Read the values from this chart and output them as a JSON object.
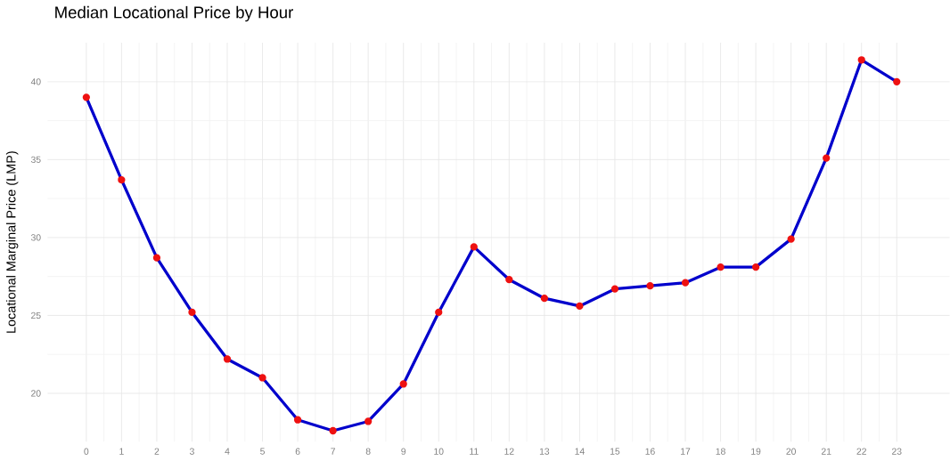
{
  "chart_data": {
    "type": "line",
    "title": "Median Locational Price by Hour",
    "ylabel": "Locational Marginal Price (LMP)",
    "x": [
      0,
      1,
      2,
      3,
      4,
      5,
      6,
      7,
      8,
      9,
      10,
      11,
      12,
      13,
      14,
      15,
      16,
      17,
      18,
      19,
      20,
      21,
      22,
      23
    ],
    "series": [
      {
        "color": "#0000cc",
        "values": [
          39.0,
          33.7,
          28.7,
          25.2,
          22.2,
          21.0,
          18.3,
          17.6,
          18.2,
          20.6,
          25.2,
          29.4,
          27.3,
          26.1,
          25.6,
          26.7,
          26.9,
          27.1,
          28.1,
          28.1,
          29.9,
          35.1,
          41.4,
          40.0
        ]
      }
    ],
    "marker": "circle",
    "xlim": [
      -1.1,
      24.5
    ],
    "ylim": [
      16.9,
      42.5
    ],
    "xticks": [
      0,
      1,
      2,
      3,
      4,
      5,
      6,
      7,
      8,
      9,
      10,
      11,
      12,
      13,
      14,
      15,
      16,
      17,
      18,
      19,
      20,
      21,
      22,
      23
    ],
    "yticks": [
      20,
      25,
      30,
      35,
      40
    ],
    "grid": true
  }
}
